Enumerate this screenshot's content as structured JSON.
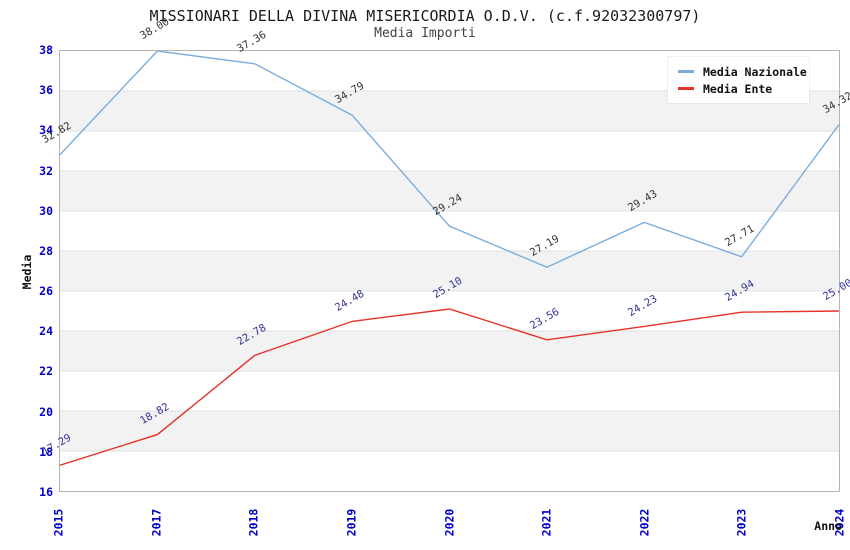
{
  "header": {
    "title": "MISSIONARI DELLA DIVINA MISERICORDIA O.D.V. (c.f.92032300797)",
    "subtitle": "Media Importi"
  },
  "axes": {
    "ylabel": "Media",
    "xlabel": "Anno"
  },
  "legend": {
    "position": "top-right",
    "items": [
      {
        "label": "Media Nazionale",
        "color": "#7aaede"
      },
      {
        "label": "Media Ente",
        "color": "#e53228"
      }
    ]
  },
  "colors": {
    "tick_label": "#0000cc",
    "band_white": "#ffffff",
    "band_gray": "#f2f2f2",
    "gridline": "#e0e0e0",
    "frame": "#b4b4b4",
    "national_line": "#7aaede",
    "ente_line": "#e53228",
    "national_value_label": "#333333",
    "ente_value_label": "#333399"
  },
  "chart_data": {
    "type": "line",
    "title": "MISSIONARI DELLA DIVINA MISERICORDIA O.D.V. (c.f.92032300797)",
    "subtitle": "Media Importi",
    "xlabel": "Anno",
    "ylabel": "Media",
    "x": [
      "2015",
      "2017",
      "2018",
      "2019",
      "2020",
      "2021",
      "2022",
      "2023",
      "2024"
    ],
    "series": [
      {
        "name": "Media Nazionale",
        "color": "#7aaede",
        "label_color": "#333333",
        "values": [
          32.82,
          38.0,
          37.36,
          34.79,
          29.24,
          27.19,
          29.43,
          27.71,
          34.32
        ]
      },
      {
        "name": "Media Ente",
        "color": "#e53228",
        "label_color": "#333399",
        "values": [
          17.29,
          18.82,
          22.78,
          24.48,
          25.1,
          23.56,
          24.23,
          24.94,
          25.0
        ]
      }
    ],
    "ylim": [
      16,
      38
    ],
    "ytick_step": 2,
    "grid": true,
    "banded_background": true,
    "legend_position": "top-right",
    "value_labels_shown": true,
    "value_label_format": "0.00"
  }
}
